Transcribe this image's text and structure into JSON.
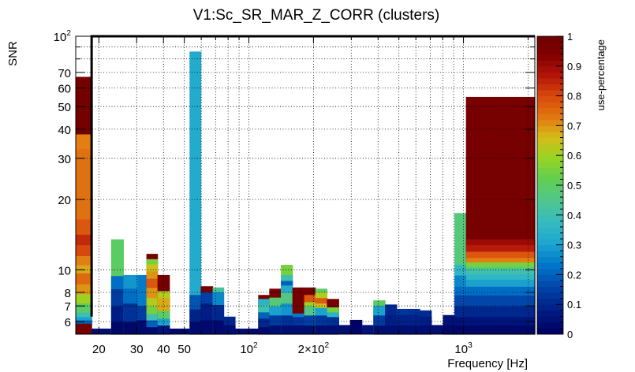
{
  "chart_data": {
    "type": "heatmap",
    "title": "V1:Sc_SR_MAR_Z_CORR (clusters)",
    "xlabel": "Frequency [Hz]",
    "ylabel": "SNR",
    "zlabel": "use-percentage",
    "x_scale": "log",
    "y_scale": "log",
    "xlim": [
      15.6,
      2150
    ],
    "ylim": [
      5.3,
      100
    ],
    "zlim": [
      0,
      1
    ],
    "x_ticks": [
      {
        "value": 20,
        "label": "20"
      },
      {
        "value": 30,
        "label": "30"
      },
      {
        "value": 40,
        "label": "40"
      },
      {
        "value": 50,
        "label": "50"
      },
      {
        "value": 100,
        "label": "10",
        "exp": "2"
      },
      {
        "value": 200,
        "label": "2×10",
        "exp": "2"
      },
      {
        "value": 1000,
        "label": "10",
        "exp": "3"
      }
    ],
    "x_minor_ticks": [
      60,
      70,
      80,
      90,
      300,
      400,
      500,
      600,
      700,
      800,
      900,
      2000
    ],
    "y_ticks": [
      {
        "value": 6,
        "label": "6"
      },
      {
        "value": 7,
        "label": "7"
      },
      {
        "value": 8,
        "label": "8"
      },
      {
        "value": 10,
        "label": "10"
      },
      {
        "value": 20,
        "label": "20"
      },
      {
        "value": 30,
        "label": "30"
      },
      {
        "value": 40,
        "label": "40"
      },
      {
        "value": 50,
        "label": "50"
      },
      {
        "value": 60,
        "label": "60"
      },
      {
        "value": 70,
        "label": "70"
      },
      {
        "value": 100,
        "label": "10",
        "exp": "2"
      }
    ],
    "y_minor_ticks": [
      80,
      90
    ],
    "z_ticks": [
      0,
      0.1,
      0.2,
      0.3,
      0.4,
      0.5,
      0.6,
      0.7,
      0.8,
      0.9,
      1
    ],
    "z_tick_labels": [
      "0",
      "0.1",
      "0.2",
      "0.3",
      "0.4",
      "0.5",
      "0.6",
      "0.7",
      "0.8",
      "0.9",
      "1"
    ],
    "nominal_band": {
      "f_min": 18.5,
      "f_max": 2150,
      "snr_min": 6.3,
      "snr_max": 100
    },
    "columns": [
      {
        "f_low": 15.6,
        "f_high": 18.5,
        "snr_max": 67,
        "top_value": 0.98,
        "segments": [
          [
            5.9,
            6.1,
            0.2
          ],
          [
            6.1,
            6.3,
            0.3
          ],
          [
            6.3,
            6.6,
            0.4
          ],
          [
            6.6,
            7.2,
            0.5
          ],
          [
            7.2,
            7.9,
            0.6
          ],
          [
            7.9,
            8.7,
            0.7
          ],
          [
            8.7,
            9.7,
            0.75
          ],
          [
            9.7,
            10.5,
            0.68
          ],
          [
            10.5,
            11.5,
            0.72
          ],
          [
            11.5,
            12.8,
            0.8
          ],
          [
            12.8,
            14.2,
            0.84
          ],
          [
            14.2,
            16.5,
            0.78
          ],
          [
            16.5,
            33,
            0.74
          ],
          [
            33,
            38,
            0.72
          ]
        ]
      },
      {
        "f_low": 18.5,
        "f_high": 22.8,
        "snr_max": 5.6,
        "top_value": 0.04,
        "segments": []
      },
      {
        "f_low": 22.8,
        "f_high": 26.0,
        "snr_max": 13.5,
        "top_value": 0.5,
        "segments": [
          [
            5.3,
            6.0,
            0.02
          ],
          [
            6.0,
            7.0,
            0.08
          ],
          [
            7.0,
            8.3,
            0.14
          ],
          [
            8.3,
            9.4,
            0.22
          ]
        ]
      },
      {
        "f_low": 26.0,
        "f_high": 30.3,
        "snr_max": 9.5,
        "top_value": 0.28,
        "segments": [
          [
            5.3,
            6.0,
            0.02
          ],
          [
            6.0,
            7.2,
            0.12
          ],
          [
            7.2,
            8.3,
            0.22
          ]
        ]
      },
      {
        "f_low": 30.3,
        "f_high": 33.3,
        "snr_max": 9.5,
        "top_value": 0.24,
        "segments": [
          [
            5.3,
            6.1,
            0.03
          ],
          [
            6.1,
            7.0,
            0.14
          ]
        ]
      },
      {
        "f_low": 33.3,
        "f_high": 37.5,
        "snr_max": 11.7,
        "top_value": 0.96,
        "segments": [
          [
            5.3,
            5.7,
            0.03
          ],
          [
            5.7,
            6.1,
            0.2
          ],
          [
            6.1,
            6.5,
            0.4
          ],
          [
            6.5,
            7.0,
            0.55
          ],
          [
            7.0,
            7.6,
            0.62
          ],
          [
            7.6,
            8.4,
            0.7
          ],
          [
            8.4,
            9.2,
            0.78
          ],
          [
            9.2,
            9.9,
            0.7
          ],
          [
            9.9,
            10.6,
            0.65
          ],
          [
            10.6,
            11.1,
            0.55
          ]
        ]
      },
      {
        "f_low": 37.5,
        "f_high": 42.6,
        "snr_max": 9.5,
        "top_value": 0.98,
        "segments": [
          [
            5.3,
            5.8,
            0.06
          ],
          [
            5.8,
            6.2,
            0.3
          ],
          [
            6.2,
            6.7,
            0.5
          ],
          [
            6.7,
            7.6,
            0.68
          ],
          [
            7.6,
            8.1,
            0.62
          ]
        ]
      },
      {
        "f_low": 42.6,
        "f_high": 46.0,
        "snr_max": 5.6,
        "top_value": 0.02,
        "segments": []
      },
      {
        "f_low": 46.0,
        "f_high": 52.9,
        "snr_max": 5.6,
        "top_value": 0.03,
        "segments": []
      },
      {
        "f_low": 52.9,
        "f_high": 59.7,
        "snr_max": 86,
        "top_value": 0.32,
        "segments": [
          [
            5.3,
            6.0,
            0.03
          ],
          [
            6.0,
            6.8,
            0.09
          ],
          [
            6.8,
            7.8,
            0.18
          ]
        ]
      },
      {
        "f_low": 59.7,
        "f_high": 67.8,
        "snr_max": 8.5,
        "top_value": 0.98,
        "segments": [
          [
            5.3,
            6.1,
            0.03
          ],
          [
            6.1,
            7.2,
            0.08
          ],
          [
            7.2,
            8.0,
            0.15
          ]
        ]
      },
      {
        "f_low": 67.8,
        "f_high": 76.3,
        "snr_max": 8.4,
        "top_value": 0.42,
        "segments": [
          [
            5.3,
            6.1,
            0.03
          ],
          [
            6.1,
            7.1,
            0.1
          ],
          [
            7.1,
            8.0,
            0.26
          ]
        ]
      },
      {
        "f_low": 76.3,
        "f_high": 86.2,
        "snr_max": 6.3,
        "top_value": 0.1,
        "segments": [
          [
            5.3,
            5.8,
            0.04
          ]
        ]
      },
      {
        "f_low": 86.2,
        "f_high": 97.6,
        "snr_max": 5.6,
        "top_value": 0.04,
        "segments": []
      },
      {
        "f_low": 97.6,
        "f_high": 110.5,
        "snr_max": 5.6,
        "top_value": 0.03,
        "segments": []
      },
      {
        "f_low": 110.5,
        "f_high": 124.5,
        "snr_max": 7.8,
        "top_value": 0.97,
        "segments": [
          [
            5.3,
            5.7,
            0.03
          ],
          [
            5.7,
            6.2,
            0.1
          ],
          [
            6.2,
            6.6,
            0.2
          ],
          [
            6.6,
            7.1,
            0.4
          ],
          [
            7.1,
            7.5,
            0.35
          ]
        ]
      },
      {
        "f_low": 124.5,
        "f_high": 141.0,
        "snr_max": 8.3,
        "top_value": 0.97,
        "segments": [
          [
            5.3,
            5.8,
            0.04
          ],
          [
            5.8,
            6.4,
            0.14
          ],
          [
            6.4,
            7.0,
            0.3
          ],
          [
            7.0,
            7.6,
            0.48
          ]
        ]
      },
      {
        "f_low": 141.0,
        "f_high": 159.5,
        "snr_max": 10.5,
        "top_value": 0.55,
        "segments": [
          [
            5.3,
            5.8,
            0.04
          ],
          [
            5.8,
            6.4,
            0.12
          ],
          [
            6.4,
            7.2,
            0.28
          ],
          [
            7.2,
            8.0,
            0.46
          ],
          [
            8.0,
            8.6,
            0.32
          ],
          [
            8.6,
            9.0,
            0.2
          ],
          [
            9.0,
            9.5,
            0.4
          ]
        ]
      },
      {
        "f_low": 159.5,
        "f_high": 181.0,
        "snr_max": 8.4,
        "top_value": 0.98,
        "segments": [
          [
            5.3,
            5.8,
            0.04
          ],
          [
            5.8,
            6.3,
            0.13
          ],
          [
            6.3,
            6.5,
            0.24
          ]
        ]
      },
      {
        "f_low": 181.0,
        "f_high": 204.0,
        "snr_max": 8.4,
        "top_value": 0.97,
        "segments": [
          [
            5.3,
            5.8,
            0.04
          ],
          [
            5.8,
            6.4,
            0.15
          ],
          [
            6.4,
            7.0,
            0.45
          ],
          [
            7.0,
            7.3,
            0.6
          ],
          [
            7.3,
            7.8,
            0.78
          ]
        ]
      },
      {
        "f_low": 204.0,
        "f_high": 231.0,
        "snr_max": 8.3,
        "top_value": 0.5,
        "segments": [
          [
            5.3,
            5.8,
            0.04
          ],
          [
            5.8,
            6.4,
            0.13
          ],
          [
            6.4,
            6.9,
            0.3
          ],
          [
            6.9,
            7.2,
            0.65
          ],
          [
            7.2,
            7.6,
            0.77
          ],
          [
            7.6,
            8.0,
            0.62
          ]
        ]
      },
      {
        "f_low": 231.0,
        "f_high": 262.0,
        "snr_max": 7.5,
        "top_value": 0.97,
        "segments": [
          [
            5.3,
            5.8,
            0.04
          ],
          [
            5.8,
            6.3,
            0.12
          ],
          [
            6.3,
            6.6,
            0.35
          ],
          [
            6.6,
            6.9,
            0.55
          ]
        ]
      },
      {
        "f_low": 262.0,
        "f_high": 296.0,
        "snr_max": 5.8,
        "top_value": 0.04,
        "segments": []
      },
      {
        "f_low": 296.0,
        "f_high": 336.0,
        "snr_max": 6.1,
        "top_value": 0.01,
        "segments": []
      },
      {
        "f_low": 336.0,
        "f_high": 380.0,
        "snr_max": 5.8,
        "top_value": 0.05,
        "segments": []
      },
      {
        "f_low": 380.0,
        "f_high": 431.0,
        "snr_max": 7.4,
        "top_value": 0.5,
        "segments": [
          [
            5.3,
            5.8,
            0.04
          ],
          [
            5.8,
            6.4,
            0.14
          ],
          [
            6.4,
            7.0,
            0.3
          ]
        ]
      },
      {
        "f_low": 431.0,
        "f_high": 488.0,
        "snr_max": 7.1,
        "top_value": 0.1,
        "segments": [
          [
            5.3,
            5.8,
            0.04
          ],
          [
            5.8,
            6.4,
            0.08
          ]
        ]
      },
      {
        "f_low": 488.0,
        "f_high": 552.0,
        "snr_max": 6.8,
        "top_value": 0.13,
        "segments": [
          [
            5.3,
            5.8,
            0.04
          ],
          [
            5.8,
            6.4,
            0.09
          ]
        ]
      },
      {
        "f_low": 552.0,
        "f_high": 625.0,
        "snr_max": 6.8,
        "top_value": 0.12,
        "segments": [
          [
            5.3,
            5.8,
            0.04
          ],
          [
            5.8,
            6.4,
            0.09
          ]
        ]
      },
      {
        "f_low": 625.0,
        "f_high": 708.0,
        "snr_max": 6.7,
        "top_value": 0.11,
        "segments": [
          [
            5.3,
            5.8,
            0.04
          ],
          [
            5.8,
            6.3,
            0.08
          ]
        ]
      },
      {
        "f_low": 708.0,
        "f_high": 802.0,
        "snr_max": 5.8,
        "top_value": 0.04,
        "segments": []
      },
      {
        "f_low": 802.0,
        "f_high": 907.0,
        "snr_max": 6.4,
        "top_value": 0.05,
        "segments": [
          [
            5.3,
            5.8,
            0.02
          ]
        ]
      },
      {
        "f_low": 907.0,
        "f_high": 1027.0,
        "snr_max": 17.5,
        "top_value": 0.47,
        "segments": [
          [
            5.3,
            5.8,
            0.02
          ],
          [
            5.8,
            6.3,
            0.05
          ],
          [
            6.3,
            7.0,
            0.1
          ],
          [
            7.0,
            7.8,
            0.16
          ],
          [
            7.8,
            8.5,
            0.22
          ],
          [
            8.5,
            9.5,
            0.26
          ],
          [
            9.5,
            10.5,
            0.36
          ]
        ]
      },
      {
        "f_low": 1027.0,
        "f_high": 2150.0,
        "snr_max": 55,
        "top_value": 0.97,
        "segments": [
          [
            5.3,
            5.8,
            0.02
          ],
          [
            5.8,
            6.3,
            0.06
          ],
          [
            6.3,
            7.0,
            0.1
          ],
          [
            7.0,
            7.8,
            0.16
          ],
          [
            7.8,
            8.5,
            0.22
          ],
          [
            8.5,
            9.1,
            0.3
          ],
          [
            9.1,
            9.6,
            0.36
          ],
          [
            9.6,
            10.0,
            0.4
          ],
          [
            10.0,
            10.3,
            0.45
          ],
          [
            10.3,
            10.8,
            0.55
          ],
          [
            10.8,
            11.3,
            0.72
          ],
          [
            11.3,
            12.0,
            0.78
          ],
          [
            12.0,
            12.8,
            0.86
          ],
          [
            12.8,
            13.5,
            0.9
          ]
        ]
      }
    ]
  }
}
